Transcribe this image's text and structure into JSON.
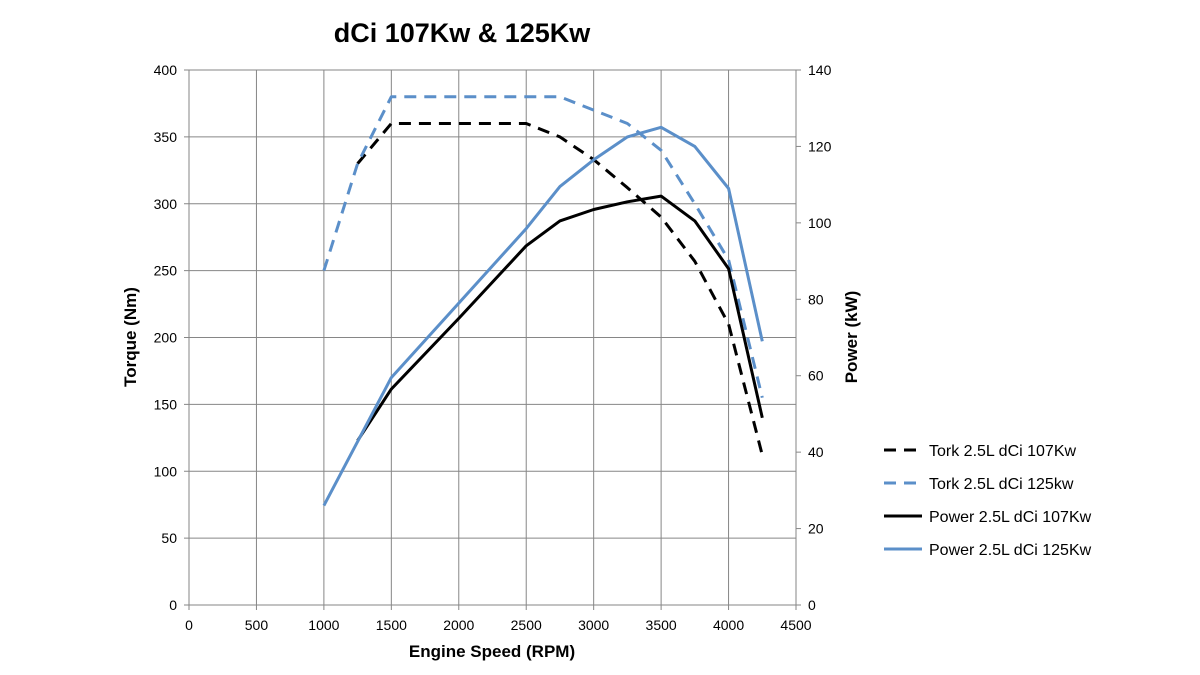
{
  "chart_data": {
    "type": "line",
    "title": "dCi 107Kw & 125Kw",
    "xlabel": "Engine Speed (RPM)",
    "ylabel_left": "Torque (Nm)",
    "ylabel_right": "Power (kW)",
    "xlim": [
      0,
      4500
    ],
    "ylim_left": [
      0,
      400
    ],
    "ylim_right": [
      0,
      140
    ],
    "x_ticks": [
      "0",
      "500",
      "1000",
      "1500",
      "2000",
      "2500",
      "3000",
      "3500",
      "4000",
      "4500"
    ],
    "y_left_ticks": [
      "0",
      "50",
      "100",
      "150",
      "200",
      "250",
      "300",
      "350",
      "400"
    ],
    "y_right_ticks": [
      "0",
      "20",
      "40",
      "60",
      "80",
      "100",
      "120",
      "140"
    ],
    "grid": true,
    "legend_position": "right",
    "series": [
      {
        "name": "Tork 2.5L dCi 107Kw",
        "axis": "left",
        "style": "dashed",
        "color": "#000000",
        "points": [
          [
            1250,
            330
          ],
          [
            1500,
            360
          ],
          [
            2000,
            360
          ],
          [
            2500,
            360
          ],
          [
            2750,
            350
          ],
          [
            3000,
            333
          ],
          [
            3250,
            312
          ],
          [
            3500,
            290
          ],
          [
            3750,
            257
          ],
          [
            4000,
            210
          ],
          [
            4250,
            112
          ]
        ]
      },
      {
        "name": "Tork 2.5L dCi 125kw",
        "axis": "left",
        "style": "dashed",
        "color": "#5b8fc9",
        "points": [
          [
            1000,
            250
          ],
          [
            1250,
            330
          ],
          [
            1500,
            380
          ],
          [
            2000,
            380
          ],
          [
            2500,
            380
          ],
          [
            2750,
            380
          ],
          [
            3000,
            370
          ],
          [
            3250,
            360
          ],
          [
            3500,
            340
          ],
          [
            3750,
            300
          ],
          [
            4000,
            258
          ],
          [
            4250,
            155
          ]
        ]
      },
      {
        "name": "Power 2.5L dCi 107Kw",
        "axis": "right",
        "style": "solid",
        "color": "#000000",
        "points": [
          [
            1250,
            43
          ],
          [
            1500,
            56.5
          ],
          [
            2000,
            75
          ],
          [
            2500,
            94
          ],
          [
            2750,
            100.5
          ],
          [
            3000,
            103.5
          ],
          [
            3250,
            105.5
          ],
          [
            3500,
            107
          ],
          [
            3750,
            100.5
          ],
          [
            4000,
            88
          ],
          [
            4250,
            49
          ]
        ]
      },
      {
        "name": "Power 2.5L dCi 125Kw",
        "axis": "right",
        "style": "solid",
        "color": "#5b8fc9",
        "points": [
          [
            1000,
            26
          ],
          [
            1500,
            59.5
          ],
          [
            2000,
            79
          ],
          [
            2500,
            98.5
          ],
          [
            2750,
            109.5
          ],
          [
            3000,
            116.5
          ],
          [
            3250,
            122.5
          ],
          [
            3500,
            125
          ],
          [
            3750,
            120
          ],
          [
            4000,
            109
          ],
          [
            4250,
            69
          ]
        ]
      }
    ]
  }
}
